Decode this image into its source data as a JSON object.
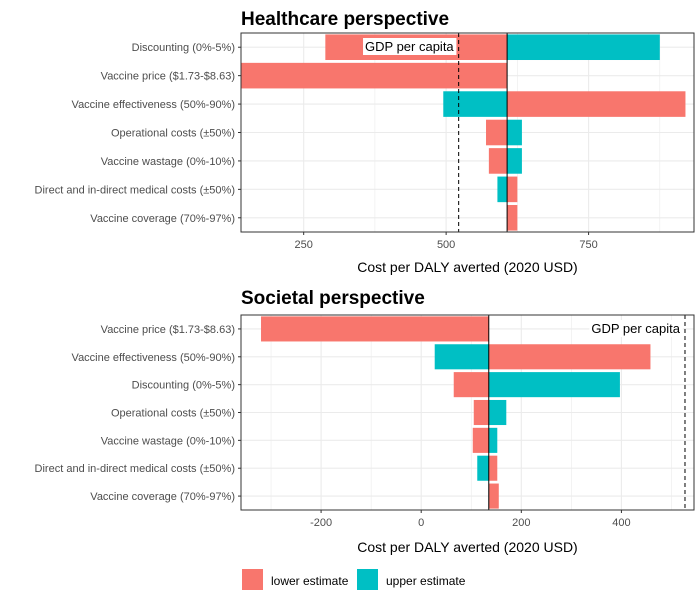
{
  "colors": {
    "lower": "#F8766D",
    "upper": "#00BFC4",
    "grid": "#EBEBEB",
    "panel_border": "#333333"
  },
  "legend": {
    "lower_label": "lower estimate",
    "upper_label": "upper estimate"
  },
  "chart_data": [
    {
      "type": "bar",
      "orientation": "horizontal",
      "title": "Healthcare perspective",
      "xlabel": "Cost per DALY averted (2020 USD)",
      "xlim": [
        140,
        935
      ],
      "x_ticks": [
        250,
        500,
        750
      ],
      "x_tick_labels": [
        "250",
        "500",
        "750"
      ],
      "baseline": 607,
      "gdp_line": 522,
      "gdp_label": "GDP per capita",
      "categories": [
        "Discounting (0%-5%)",
        "Vaccine price ($1.73-$8.63)",
        "Vaccine effectiveness (50%-90%)",
        "Operational costs (±50%)",
        "Vaccine wastage (0%-10%)",
        "Direct and in-direct medical costs (±50%)",
        "Vaccine coverage (70%-97%)"
      ],
      "lower_estimate": [
        288,
        140,
        920,
        570,
        575,
        625,
        625
      ],
      "upper_estimate": [
        875,
        607,
        495,
        633,
        633,
        590,
        607
      ]
    },
    {
      "type": "bar",
      "orientation": "horizontal",
      "title": "Societal perspective",
      "xlabel": "Cost per DALY averted (2020 USD)",
      "xlim": [
        -360,
        545
      ],
      "x_ticks": [
        -200,
        0,
        200,
        400
      ],
      "x_tick_labels": [
        "-200",
        "0",
        "200",
        "400"
      ],
      "baseline": 135,
      "gdp_line": 527,
      "gdp_label": "GDP per capita",
      "categories": [
        "Vaccine price ($1.73-$8.63)",
        "Vaccine effectiveness (50%-90%)",
        "Discounting (0%-5%)",
        "Operational costs (±50%)",
        "Vaccine wastage (0%-10%)",
        "Direct and in-direct medical costs (±50%)",
        "Vaccine coverage (70%-97%)"
      ],
      "lower_estimate": [
        -320,
        458,
        65,
        105,
        103,
        152,
        155
      ],
      "upper_estimate": [
        135,
        27,
        397,
        170,
        152,
        112,
        135
      ]
    }
  ]
}
